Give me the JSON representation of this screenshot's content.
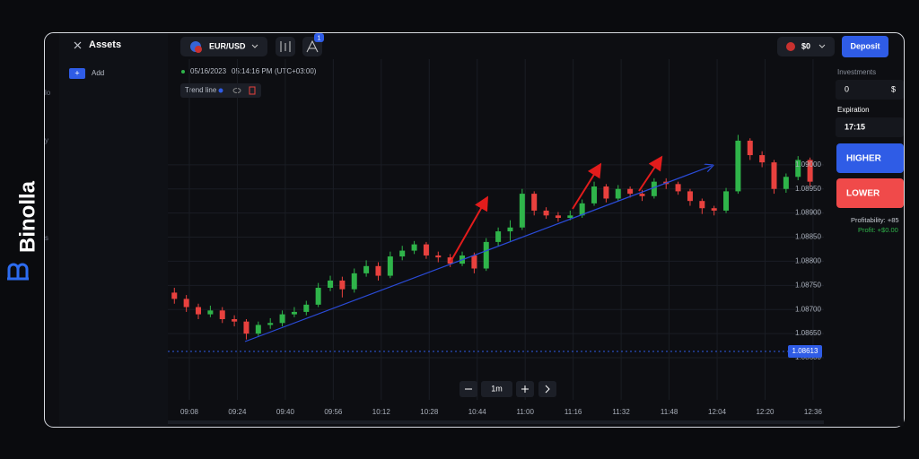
{
  "brand": "Binolla",
  "sidebar": {
    "title": "Assets",
    "add_button": "Add",
    "fragments": [
      "lo",
      "y",
      "s"
    ]
  },
  "topbar": {
    "asset": "EUR/USD",
    "badge": "1",
    "balance": "$0",
    "deposit": "Deposit"
  },
  "chart_info": {
    "date": "05/16/2023",
    "time": "05:14:16 PM",
    "timezone": "(UTC+03:00)",
    "tool": "Trend line"
  },
  "trade_panel": {
    "investments_label": "Investments",
    "investment_value": "0",
    "currency": "$",
    "expiration_label": "Expiration",
    "expiration_value": "17:15",
    "higher": "HIGHER",
    "lower": "LOWER",
    "profitability": "Profitability: +85",
    "profit": "Profit: +$0.00"
  },
  "timeframe": "1m",
  "chart_data": {
    "type": "candlestick",
    "up_color": "#2fb44a",
    "down_color": "#e8413e",
    "grid": true,
    "current_price": 1.08613,
    "x": [
      543,
      547,
      551,
      555,
      559,
      563,
      567,
      571,
      575,
      579,
      583,
      587,
      591,
      595,
      599,
      603,
      607,
      611,
      615,
      619,
      623,
      627,
      631,
      635,
      639,
      643,
      647,
      651,
      655,
      659,
      663,
      667,
      671,
      675,
      679,
      683,
      687,
      691,
      695,
      699,
      703,
      707,
      711,
      715,
      719,
      723,
      727,
      731,
      735,
      739,
      743,
      747,
      751,
      755
    ],
    "open": [
      1.08735,
      1.08722,
      1.08705,
      1.0869,
      1.08698,
      1.0868,
      1.08675,
      1.0865,
      1.08668,
      1.08672,
      1.0869,
      1.08695,
      1.0871,
      1.08745,
      1.0876,
      1.08742,
      1.08775,
      1.0879,
      1.0877,
      1.0881,
      1.08822,
      1.08835,
      1.08812,
      1.08808,
      1.08795,
      1.08812,
      1.08785,
      1.0884,
      1.08862,
      1.0887,
      1.0894,
      1.08905,
      1.08895,
      1.0889,
      1.08895,
      1.0892,
      1.08955,
      1.0893,
      1.0895,
      1.0894,
      1.08935,
      1.08965,
      1.0896,
      1.08945,
      1.08925,
      1.0891,
      1.08905,
      1.08945,
      1.0905,
      1.0902,
      1.09005,
      1.0895,
      1.08975,
      1.0901
    ],
    "high": [
      1.08745,
      1.0873,
      1.08712,
      1.08708,
      1.08705,
      1.08688,
      1.0868,
      1.08675,
      1.08682,
      1.08698,
      1.08705,
      1.08718,
      1.08755,
      1.0877,
      1.08768,
      1.08785,
      1.08802,
      1.08798,
      1.0882,
      1.08832,
      1.08842,
      1.0884,
      1.0882,
      1.08815,
      1.0882,
      1.08818,
      1.08848,
      1.0887,
      1.08885,
      1.0895,
      1.08945,
      1.08912,
      1.08902,
      1.08905,
      1.08928,
      1.08965,
      1.0896,
      1.08958,
      1.08955,
      1.08948,
      1.08972,
      1.08972,
      1.08965,
      1.0895,
      1.0893,
      1.08915,
      1.08952,
      1.09062,
      1.09055,
      1.09028,
      1.0901,
      1.08982,
      1.09018,
      1.09015
    ],
    "low": [
      1.08712,
      1.08695,
      1.0868,
      1.08684,
      1.08672,
      1.08665,
      1.08638,
      1.08645,
      1.0866,
      1.08665,
      1.08684,
      1.08688,
      1.08705,
      1.08738,
      1.08725,
      1.08735,
      1.08768,
      1.0876,
      1.08765,
      1.08802,
      1.08815,
      1.08805,
      1.08798,
      1.08788,
      1.0879,
      1.08775,
      1.0878,
      1.08832,
      1.08842,
      1.08865,
      1.08895,
      1.08888,
      1.08882,
      1.08885,
      1.0889,
      1.08915,
      1.08922,
      1.08925,
      1.08932,
      1.08925,
      1.0893,
      1.0895,
      1.08938,
      1.08915,
      1.08898,
      1.08895,
      1.089,
      1.0894,
      1.0901,
      1.08995,
      1.0894,
      1.08942,
      1.08968,
      1.08955
    ],
    "close": [
      1.08722,
      1.08705,
      1.0869,
      1.08698,
      1.0868,
      1.08675,
      1.0865,
      1.08668,
      1.08672,
      1.0869,
      1.08695,
      1.0871,
      1.08745,
      1.0876,
      1.08742,
      1.08775,
      1.0879,
      1.0877,
      1.0881,
      1.08822,
      1.08835,
      1.08812,
      1.08808,
      1.08795,
      1.08812,
      1.08785,
      1.0884,
      1.08862,
      1.0887,
      1.0894,
      1.08905,
      1.08895,
      1.0889,
      1.08895,
      1.0892,
      1.08955,
      1.0893,
      1.0895,
      1.0894,
      1.08935,
      1.08965,
      1.0896,
      1.08945,
      1.08925,
      1.0891,
      1.08905,
      1.08945,
      1.0905,
      1.0902,
      1.09005,
      1.0895,
      1.08975,
      1.0901,
      1.08965
    ],
    "xlim": [
      541,
      760
    ],
    "xticks": [
      {
        "value": 548,
        "label": "09:08"
      },
      {
        "value": 564,
        "label": "09:24"
      },
      {
        "value": 580,
        "label": "09:40"
      },
      {
        "value": 596,
        "label": "09:56"
      },
      {
        "value": 612,
        "label": "10:12"
      },
      {
        "value": 628,
        "label": "10:28"
      },
      {
        "value": 644,
        "label": "10:44"
      },
      {
        "value": 660,
        "label": "11:00"
      },
      {
        "value": 676,
        "label": "11:16"
      },
      {
        "value": 692,
        "label": "11:32"
      },
      {
        "value": 708,
        "label": "11:48"
      },
      {
        "value": 724,
        "label": "12:04"
      },
      {
        "value": 740,
        "label": "12:20"
      },
      {
        "value": 756,
        "label": "12:36"
      }
    ],
    "ylim": [
      1.0858,
      1.0925
    ],
    "yticks": [
      {
        "value": 1.086,
        "label": "1.08600"
      },
      {
        "value": 1.0865,
        "label": "1.08650"
      },
      {
        "value": 1.087,
        "label": "1.08700"
      },
      {
        "value": 1.0875,
        "label": "1.08750"
      },
      {
        "value": 1.088,
        "label": "1.08800"
      },
      {
        "value": 1.0885,
        "label": "1.08850"
      },
      {
        "value": 1.089,
        "label": "1.08900"
      },
      {
        "value": 1.0895,
        "label": "1.08950"
      },
      {
        "value": 1.09,
        "label": "1.09000"
      }
    ]
  }
}
